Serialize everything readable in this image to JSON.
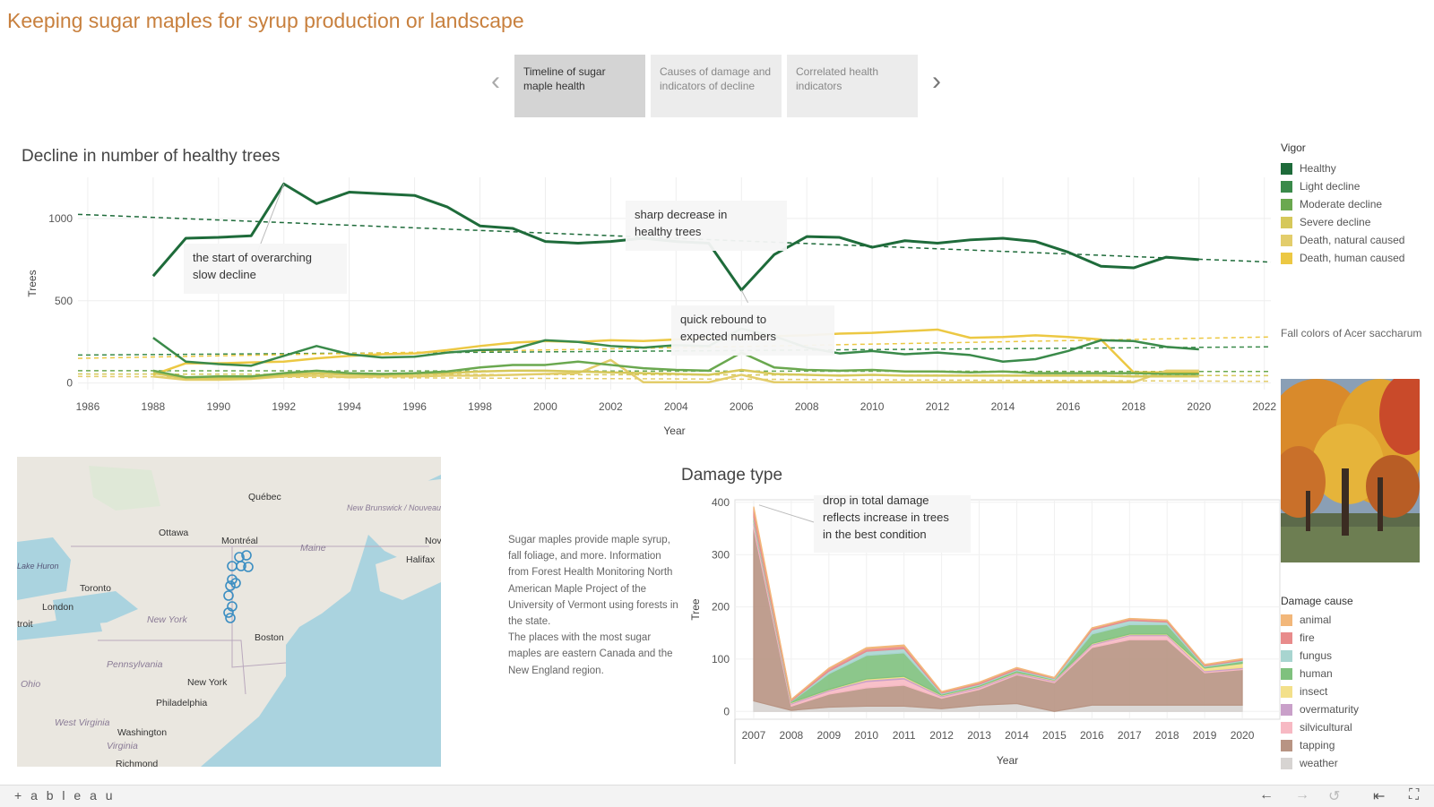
{
  "page_title": "Keeping sugar maples for syrup production or landscape",
  "story_tabs": [
    {
      "label": "Timeline of sugar maple health",
      "active": true
    },
    {
      "label": "Causes of damage and indicators of decline",
      "active": false
    },
    {
      "label": "Correlated health indicators",
      "active": false
    }
  ],
  "vigor_legend": {
    "title": "Vigor",
    "items": [
      {
        "label": "Healthy",
        "color": "#1e6b3a"
      },
      {
        "label": "Light decline",
        "color": "#3a8a4a"
      },
      {
        "label": "Moderate decline",
        "color": "#6aa84f"
      },
      {
        "label": "Severe decline",
        "color": "#d6c85a"
      },
      {
        "label": "Death, natural caused",
        "color": "#e3cd6b"
      },
      {
        "label": "Death, human caused",
        "color": "#ecc843"
      }
    ]
  },
  "damage_legend": {
    "title": "Damage cause",
    "items": [
      {
        "label": "animal",
        "color": "#f2b77a"
      },
      {
        "label": "fire",
        "color": "#e88b8b"
      },
      {
        "label": "fungus",
        "color": "#a8d5d0"
      },
      {
        "label": "human",
        "color": "#7fc17e"
      },
      {
        "label": "insect",
        "color": "#f3e08a"
      },
      {
        "label": "overmaturity",
        "color": "#c9a0c9"
      },
      {
        "label": "silvicultural",
        "color": "#f7b9c3"
      },
      {
        "label": "tapping",
        "color": "#b89483"
      },
      {
        "label": "weather",
        "color": "#d7d4d2"
      }
    ]
  },
  "photo_caption": "Fall colors of Acer saccharum",
  "info_text": [
    "Sugar maples provide maple syrup, fall foliage, and more. Information from Forest Health Monitoring North American Maple Project of the University of Vermont using forests in the state.",
    "The places with the most sugar maples are eastern Canada and the New England region."
  ],
  "map": {
    "labels": [
      "Québec",
      "Ottawa",
      "Montréal",
      "Maine",
      "New Brunswick / Nouveau-Brunswick",
      "Nova",
      "Halifax",
      "Lake Huron",
      "Toronto",
      "London",
      "troit",
      "New York",
      "Boston",
      "Pennsylvania",
      "New York",
      "Ohio",
      "Philadelphia",
      "West Virginia",
      "Washington",
      "Virginia",
      "Richmond"
    ]
  },
  "footer": {
    "brand": "+ a b l e a u"
  },
  "chart_data": [
    {
      "type": "line",
      "title": "Decline in number of healthy trees",
      "xlabel": "Year",
      "ylabel": "Trees",
      "xlim": [
        1985.7,
        2022.2
      ],
      "ylim": [
        -40,
        1250
      ],
      "x_ticks": [
        1986,
        1988,
        1990,
        1992,
        1994,
        1996,
        1998,
        2000,
        2002,
        2004,
        2006,
        2008,
        2010,
        2012,
        2014,
        2016,
        2018,
        2020,
        2022
      ],
      "y_ticks": [
        0,
        500,
        1000
      ],
      "grid": true,
      "legend": "right",
      "x": [
        1988,
        1989,
        1990,
        1991,
        1992,
        1993,
        1994,
        1995,
        1996,
        1997,
        1998,
        1999,
        2000,
        2001,
        2002,
        2003,
        2004,
        2005,
        2006,
        2007,
        2008,
        2009,
        2010,
        2011,
        2012,
        2013,
        2014,
        2015,
        2016,
        2017,
        2018,
        2019,
        2020
      ],
      "series": [
        {
          "name": "Healthy",
          "color": "#1e6b3a",
          "values": [
            650,
            880,
            885,
            895,
            1210,
            1090,
            1160,
            1150,
            1140,
            1070,
            955,
            940,
            860,
            850,
            860,
            880,
            860,
            850,
            565,
            780,
            890,
            885,
            825,
            865,
            850,
            870,
            880,
            860,
            795,
            710,
            700,
            765,
            750
          ],
          "trend": [
            1025,
            735
          ]
        },
        {
          "name": "Light decline",
          "color": "#3a8a4a",
          "values": [
            275,
            130,
            115,
            105,
            165,
            225,
            175,
            155,
            160,
            185,
            200,
            205,
            260,
            250,
            225,
            215,
            230,
            225,
            330,
            285,
            215,
            180,
            195,
            175,
            185,
            170,
            130,
            145,
            195,
            260,
            255,
            220,
            205
          ],
          "trend": [
            170,
            220
          ]
        },
        {
          "name": "Moderate decline",
          "color": "#6aa84f",
          "values": [
            75,
            35,
            40,
            40,
            60,
            75,
            60,
            55,
            60,
            70,
            95,
            110,
            110,
            130,
            110,
            90,
            80,
            75,
            185,
            95,
            80,
            75,
            80,
            70,
            70,
            65,
            70,
            60,
            60,
            60,
            60,
            55,
            55
          ],
          "trend": [
            75,
            70
          ]
        },
        {
          "name": "Severe decline",
          "color": "#d6c85a",
          "values": [
            60,
            30,
            30,
            30,
            50,
            60,
            50,
            50,
            55,
            60,
            70,
            75,
            75,
            70,
            65,
            60,
            55,
            50,
            80,
            55,
            50,
            45,
            50,
            45,
            45,
            45,
            45,
            45,
            45,
            45,
            40,
            40,
            40
          ],
          "trend": [
            55,
            45
          ]
        },
        {
          "name": "Death, natural caused",
          "color": "#e3cd6b",
          "values": [
            40,
            20,
            20,
            25,
            40,
            45,
            35,
            40,
            40,
            45,
            45,
            50,
            55,
            60,
            140,
            5,
            5,
            5,
            50,
            5,
            5,
            5,
            5,
            5,
            5,
            5,
            5,
            5,
            5,
            5,
            5,
            75,
            75
          ],
          "trend": [
            40,
            10
          ]
        },
        {
          "name": "Death, human caused",
          "color": "#ecc843",
          "values": [
            50,
            120,
            120,
            125,
            130,
            150,
            165,
            175,
            180,
            200,
            225,
            245,
            255,
            250,
            260,
            255,
            265,
            275,
            280,
            285,
            290,
            300,
            305,
            315,
            325,
            275,
            280,
            290,
            280,
            265,
            65,
            65,
            65
          ],
          "trend": [
            150,
            280
          ]
        }
      ],
      "annotations": [
        "the start of overarching slow decline",
        "sharp decrease in healthy trees",
        "quick rebound to expected numbers"
      ]
    },
    {
      "type": "area",
      "title": "Damage type",
      "xlabel": "Year",
      "ylabel": "Tree",
      "xlim": [
        2006.5,
        2021.0
      ],
      "ylim": [
        -15,
        405
      ],
      "x_ticks": [
        2007,
        2008,
        2009,
        2010,
        2011,
        2012,
        2013,
        2014,
        2015,
        2016,
        2017,
        2018,
        2019,
        2020
      ],
      "y_ticks": [
        0,
        100,
        200,
        300,
        400
      ],
      "grid": true,
      "legend": "right",
      "x": [
        2007,
        2008,
        2009,
        2010,
        2011,
        2012,
        2013,
        2014,
        2015,
        2016,
        2017,
        2018,
        2019,
        2020
      ],
      "series": [
        {
          "name": "weather",
          "color": "#d7d4d2",
          "values": [
            20,
            2,
            8,
            10,
            10,
            5,
            12,
            15,
            0,
            12,
            12,
            12,
            12,
            12
          ]
        },
        {
          "name": "tapping",
          "color": "#b89483",
          "values": [
            330,
            8,
            25,
            35,
            40,
            20,
            30,
            55,
            55,
            110,
            125,
            125,
            62,
            68
          ]
        },
        {
          "name": "silvicultural",
          "color": "#f7b9c3",
          "values": [
            8,
            4,
            6,
            12,
            12,
            3,
            3,
            2,
            2,
            5,
            8,
            8,
            2,
            2
          ]
        },
        {
          "name": "overmaturity",
          "color": "#c9a0c9",
          "values": [
            5,
            2,
            2,
            3,
            3,
            2,
            2,
            2,
            2,
            2,
            2,
            2,
            2,
            2
          ]
        },
        {
          "name": "insect",
          "color": "#f3e08a",
          "values": [
            2,
            1,
            1,
            2,
            2,
            1,
            1,
            1,
            1,
            1,
            1,
            1,
            5,
            8
          ]
        },
        {
          "name": "human",
          "color": "#7fc17e",
          "values": [
            3,
            2,
            30,
            45,
            45,
            2,
            2,
            3,
            1,
            18,
            18,
            18,
            2,
            4
          ]
        },
        {
          "name": "fungus",
          "color": "#a8d5d0",
          "values": [
            4,
            1,
            5,
            8,
            8,
            2,
            2,
            2,
            2,
            8,
            8,
            5,
            2,
            2
          ]
        },
        {
          "name": "fire",
          "color": "#e88b8b",
          "values": [
            15,
            2,
            5,
            5,
            5,
            2,
            3,
            3,
            1,
            3,
            3,
            3,
            2,
            2
          ]
        },
        {
          "name": "animal",
          "color": "#f2b77a",
          "values": [
            5,
            1,
            1,
            2,
            2,
            1,
            1,
            1,
            1,
            1,
            1,
            1,
            1,
            1
          ]
        }
      ],
      "annotations": [
        "drop in total damage reflects increase in trees in the best condition"
      ]
    }
  ]
}
